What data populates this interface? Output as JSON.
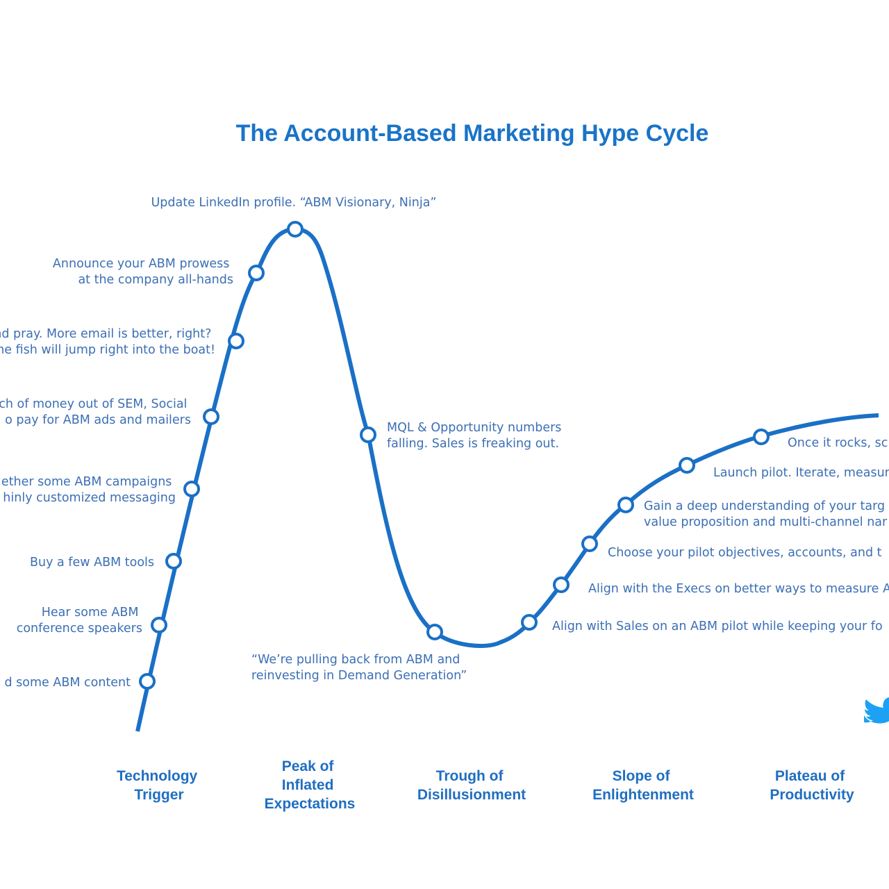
{
  "title": "The Account-Based Marketing Hype Cycle",
  "annotations": [
    {
      "lines": [
        "d some ABM content"
      ]
    },
    {
      "lines": [
        "Hear some ABM",
        "conference speakers"
      ]
    },
    {
      "lines": [
        "Buy a few ABM tools"
      ]
    },
    {
      "lines": [
        "ether some ABM campaigns",
        "hinly customized messaging"
      ]
    },
    {
      "lines": [
        "ch of money out of SEM, Social",
        "o pay for ABM ads and mailers"
      ]
    },
    {
      "lines": [
        "nd pray. More email is better, right?",
        "he fish will jump right into the boat!"
      ]
    },
    {
      "lines": [
        "Announce your ABM prowess",
        "at the company all-hands"
      ]
    },
    {
      "lines": [
        "Update LinkedIn profile. “ABM Visionary, Ninja”"
      ]
    },
    {
      "lines": [
        "MQL & Opportunity numbers",
        "falling. Sales is freaking out."
      ]
    },
    {
      "lines": [
        "“We’re pulling back from ABM and",
        "reinvesting in Demand Generation”"
      ]
    },
    {
      "lines": [
        "Align with Sales on an ABM pilot while keeping your fo"
      ]
    },
    {
      "lines": [
        "Align with the Execs on better ways to measure A"
      ]
    },
    {
      "lines": [
        "Choose your pilot objectives, accounts, and t"
      ]
    },
    {
      "lines": [
        "Gain a deep understanding of your targ",
        "value proposition and multi-channel nar"
      ]
    },
    {
      "lines": [
        "Launch pilot. Iterate, measur"
      ]
    },
    {
      "lines": [
        "Once it rocks, sc"
      ]
    }
  ],
  "phases": [
    {
      "lines": [
        "Technology",
        "Trigger"
      ]
    },
    {
      "lines": [
        "Peak of",
        "Inflated",
        "Expectations"
      ]
    },
    {
      "lines": [
        "Trough of",
        "Disillusionment"
      ]
    },
    {
      "lines": [
        "Slope of",
        "Enlightenment"
      ]
    },
    {
      "lines": [
        "Plateau of",
        "Productivity"
      ]
    }
  ],
  "colors": {
    "title": "#1a73c8",
    "curve": "#1a70c6",
    "annotation_text": "#3c6fb4",
    "phase_text": "#1f6ec1",
    "logo": "#1da1f2"
  },
  "icons": {
    "logo": "twitter-bird-icon"
  }
}
